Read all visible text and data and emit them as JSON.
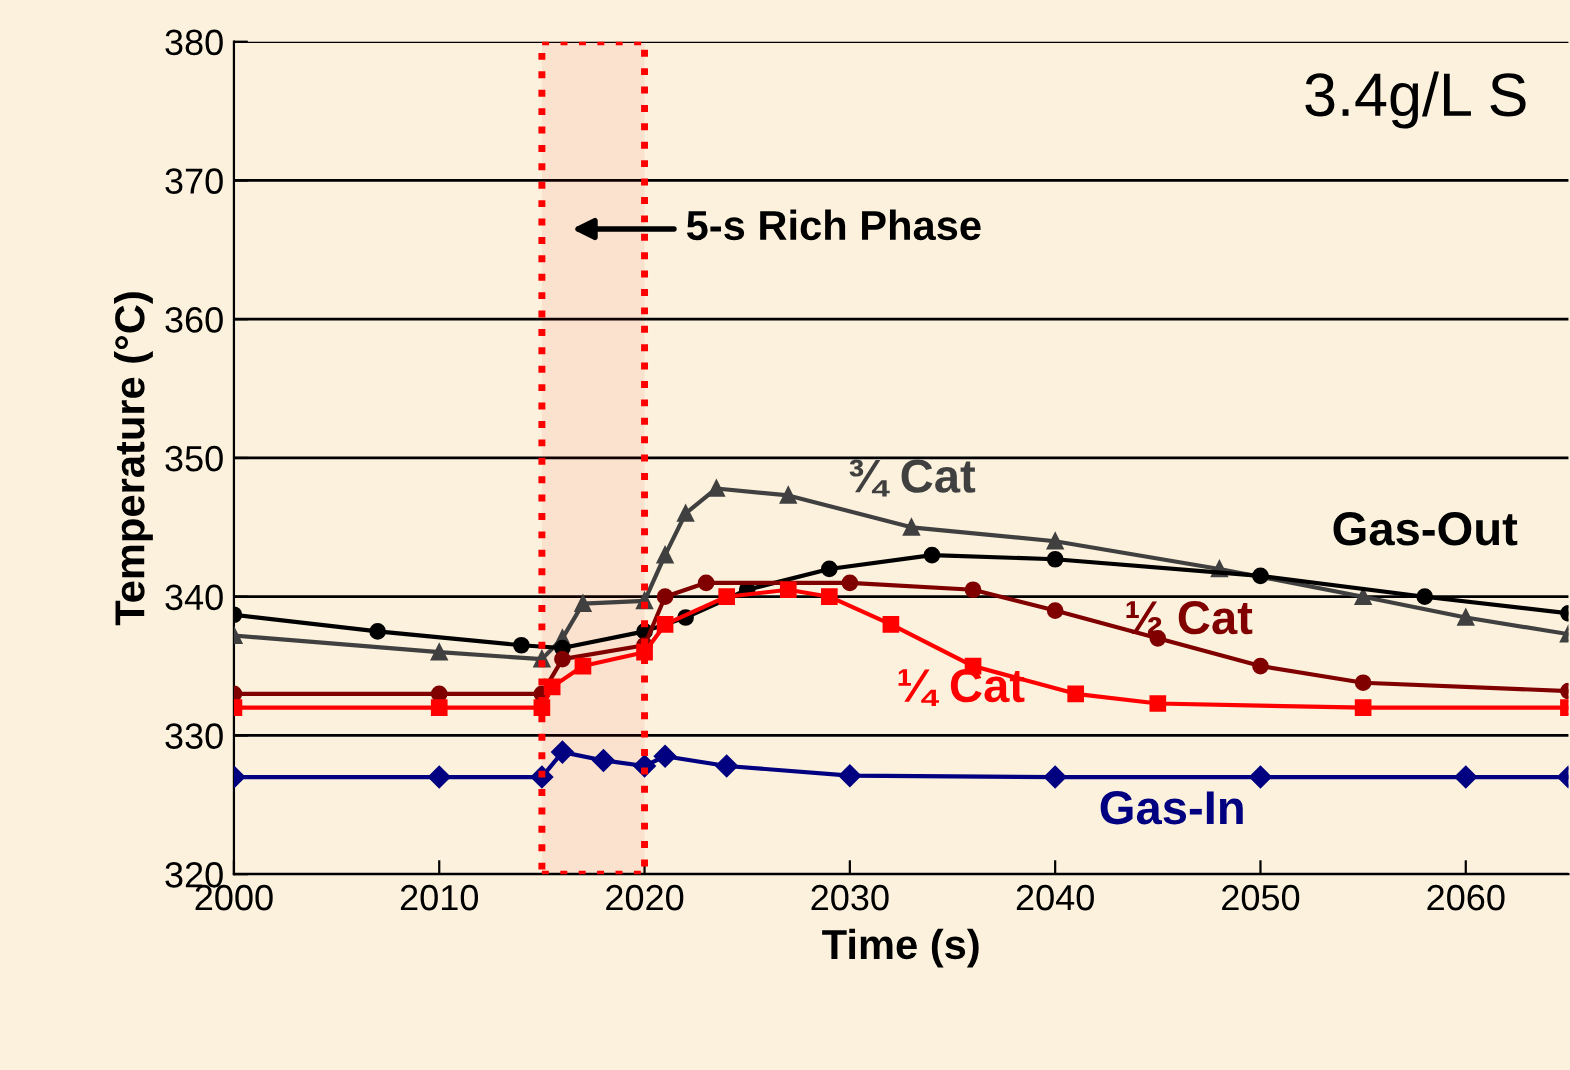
{
  "chart_data": {
    "type": "line",
    "xlabel": "Time (s)",
    "ylabel": "Temperature (°C)",
    "xlim": [
      2000,
      2065
    ],
    "xticks": [
      2000,
      2010,
      2020,
      2030,
      2040,
      2050,
      2060
    ],
    "ylim": [
      320,
      380
    ],
    "yticks": [
      320,
      330,
      340,
      350,
      360,
      370,
      380
    ],
    "grid": "y",
    "legend": false,
    "annotations": [
      "3.4g/L S"
    ],
    "bands": [
      {
        "axis": "x",
        "from": 2015,
        "to": 2020,
        "label": "5-s Rich Phase",
        "color": "#ff0000"
      }
    ],
    "series": [
      {
        "name": "Gas-In",
        "color": "#000080",
        "marker": "diamond",
        "x": [
          2000,
          2010,
          2015,
          2016,
          2018,
          2020,
          2021,
          2024,
          2030,
          2040,
          2050,
          2060,
          2065
        ],
        "values": [
          327,
          327,
          327,
          328.8,
          328.2,
          327.8,
          328.5,
          327.8,
          327.1,
          327,
          327,
          327,
          327
        ]
      },
      {
        "name": "¼ Cat",
        "color": "#ff0000",
        "marker": "square",
        "x": [
          2000,
          2010,
          2015,
          2015.5,
          2017,
          2020,
          2021,
          2024,
          2027,
          2029,
          2032,
          2036,
          2041,
          2045,
          2055,
          2065
        ],
        "values": [
          332,
          332,
          332,
          333.5,
          335,
          336,
          338,
          340,
          340.5,
          340,
          338,
          335,
          333,
          332.3,
          332,
          332
        ]
      },
      {
        "name": "½ Cat",
        "color": "#800000",
        "marker": "circle",
        "x": [
          2000,
          2010,
          2015,
          2016,
          2020,
          2021,
          2023,
          2030,
          2036,
          2040,
          2045,
          2050,
          2055,
          2065
        ],
        "values": [
          333,
          333,
          333,
          335.5,
          336.5,
          340,
          341,
          341,
          340.5,
          339,
          337,
          335,
          333.8,
          333.2
        ]
      },
      {
        "name": "Gas-Out",
        "color": "#000000",
        "marker": "circle",
        "x": [
          2000,
          2007,
          2014,
          2016,
          2020,
          2022,
          2025,
          2029,
          2034,
          2040,
          2050,
          2058,
          2065
        ],
        "values": [
          338.7,
          337.5,
          336.5,
          336.3,
          337.5,
          338.5,
          340.5,
          342,
          343,
          342.7,
          341.5,
          340,
          338.8
        ]
      },
      {
        "name": "¾ Cat",
        "color": "#404040",
        "marker": "triangle",
        "x": [
          2000,
          2010,
          2015,
          2016,
          2017,
          2020,
          2021,
          2022,
          2023.5,
          2027,
          2033,
          2040,
          2048,
          2055,
          2060,
          2065
        ],
        "values": [
          337.2,
          336,
          335.5,
          337,
          339.5,
          339.7,
          343,
          346,
          347.8,
          347.3,
          345,
          344,
          342,
          340,
          338.5,
          337.3
        ]
      }
    ]
  }
}
